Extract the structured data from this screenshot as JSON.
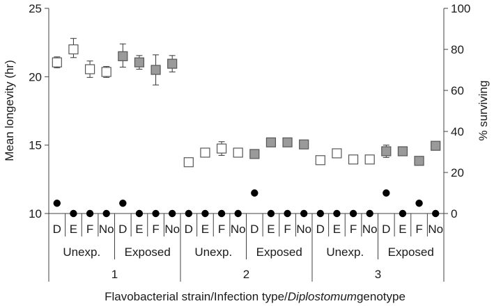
{
  "chart_data": {
    "type": "scatter",
    "xlabel_parts": [
      "Flavobacterial strain/Infection type/",
      "Diplostomum",
      "genotype"
    ],
    "ylabel_left": "Mean longevity (hr)",
    "ylabel_right": "% surviving",
    "ylim_left": [
      10,
      25
    ],
    "yticks_left": [
      10,
      15,
      20,
      25
    ],
    "ylim_right": [
      0,
      100
    ],
    "yticks_right": [
      0,
      20,
      40,
      60,
      80,
      100
    ],
    "genotypes": [
      "D",
      "E",
      "F",
      "No",
      "D",
      "E",
      "F",
      "No",
      "D",
      "E",
      "F",
      "No",
      "D",
      "E",
      "F",
      "No",
      "D",
      "E",
      "F",
      "No",
      "D",
      "E",
      "F",
      "No"
    ],
    "infection_groups": [
      "Unexp.",
      "Exposed",
      "Unexp.",
      "Exposed",
      "Unexp.",
      "Exposed"
    ],
    "strains": [
      "1",
      "2",
      "3"
    ],
    "series": [
      {
        "name": "Mean longevity",
        "marker": "square",
        "axis": "left",
        "values": [
          21.05,
          22.0,
          20.55,
          20.35,
          21.5,
          21.05,
          20.5,
          20.95,
          13.75,
          14.45,
          14.75,
          14.45,
          14.35,
          15.2,
          15.2,
          15.05,
          13.9,
          14.4,
          13.95,
          13.95,
          14.55,
          14.55,
          13.85,
          14.95
        ],
        "err_low": [
          0.4,
          0.6,
          0.6,
          0.4,
          0.8,
          0.5,
          1.1,
          0.6,
          0.25,
          0.15,
          0.5,
          0.1,
          0.15,
          0.1,
          0.1,
          0.15,
          0.1,
          0.1,
          0.1,
          0.1,
          0.45,
          0.1,
          0.1,
          0.1
        ],
        "err_high": [
          0.4,
          0.8,
          0.6,
          0.4,
          0.9,
          0.5,
          1.1,
          0.6,
          0.25,
          0.15,
          0.5,
          0.1,
          0.15,
          0.1,
          0.1,
          0.15,
          0.1,
          0.1,
          0.1,
          0.1,
          0.45,
          0.1,
          0.1,
          0.1
        ],
        "fill": [
          "#ffffff",
          "#ffffff",
          "#ffffff",
          "#ffffff",
          "#9a9a9a",
          "#9a9a9a",
          "#9a9a9a",
          "#9a9a9a",
          "#ffffff",
          "#ffffff",
          "#ffffff",
          "#ffffff",
          "#9a9a9a",
          "#9a9a9a",
          "#9a9a9a",
          "#9a9a9a",
          "#ffffff",
          "#ffffff",
          "#ffffff",
          "#ffffff",
          "#9a9a9a",
          "#9a9a9a",
          "#9a9a9a",
          "#9a9a9a"
        ]
      },
      {
        "name": "% surviving",
        "marker": "circle",
        "axis": "right",
        "color": "#000000",
        "values": [
          5,
          0,
          0,
          0,
          5,
          0,
          0,
          0,
          0,
          0,
          0,
          0,
          10,
          0,
          0,
          0,
          0,
          0,
          0,
          0,
          10,
          0,
          5,
          0
        ]
      }
    ],
    "grid": false,
    "colors": {
      "unexposed_fill": "#ffffff",
      "exposed_fill": "#9a9a9a",
      "stroke": "#555555",
      "dot": "#000000",
      "axis": "#404040"
    }
  }
}
